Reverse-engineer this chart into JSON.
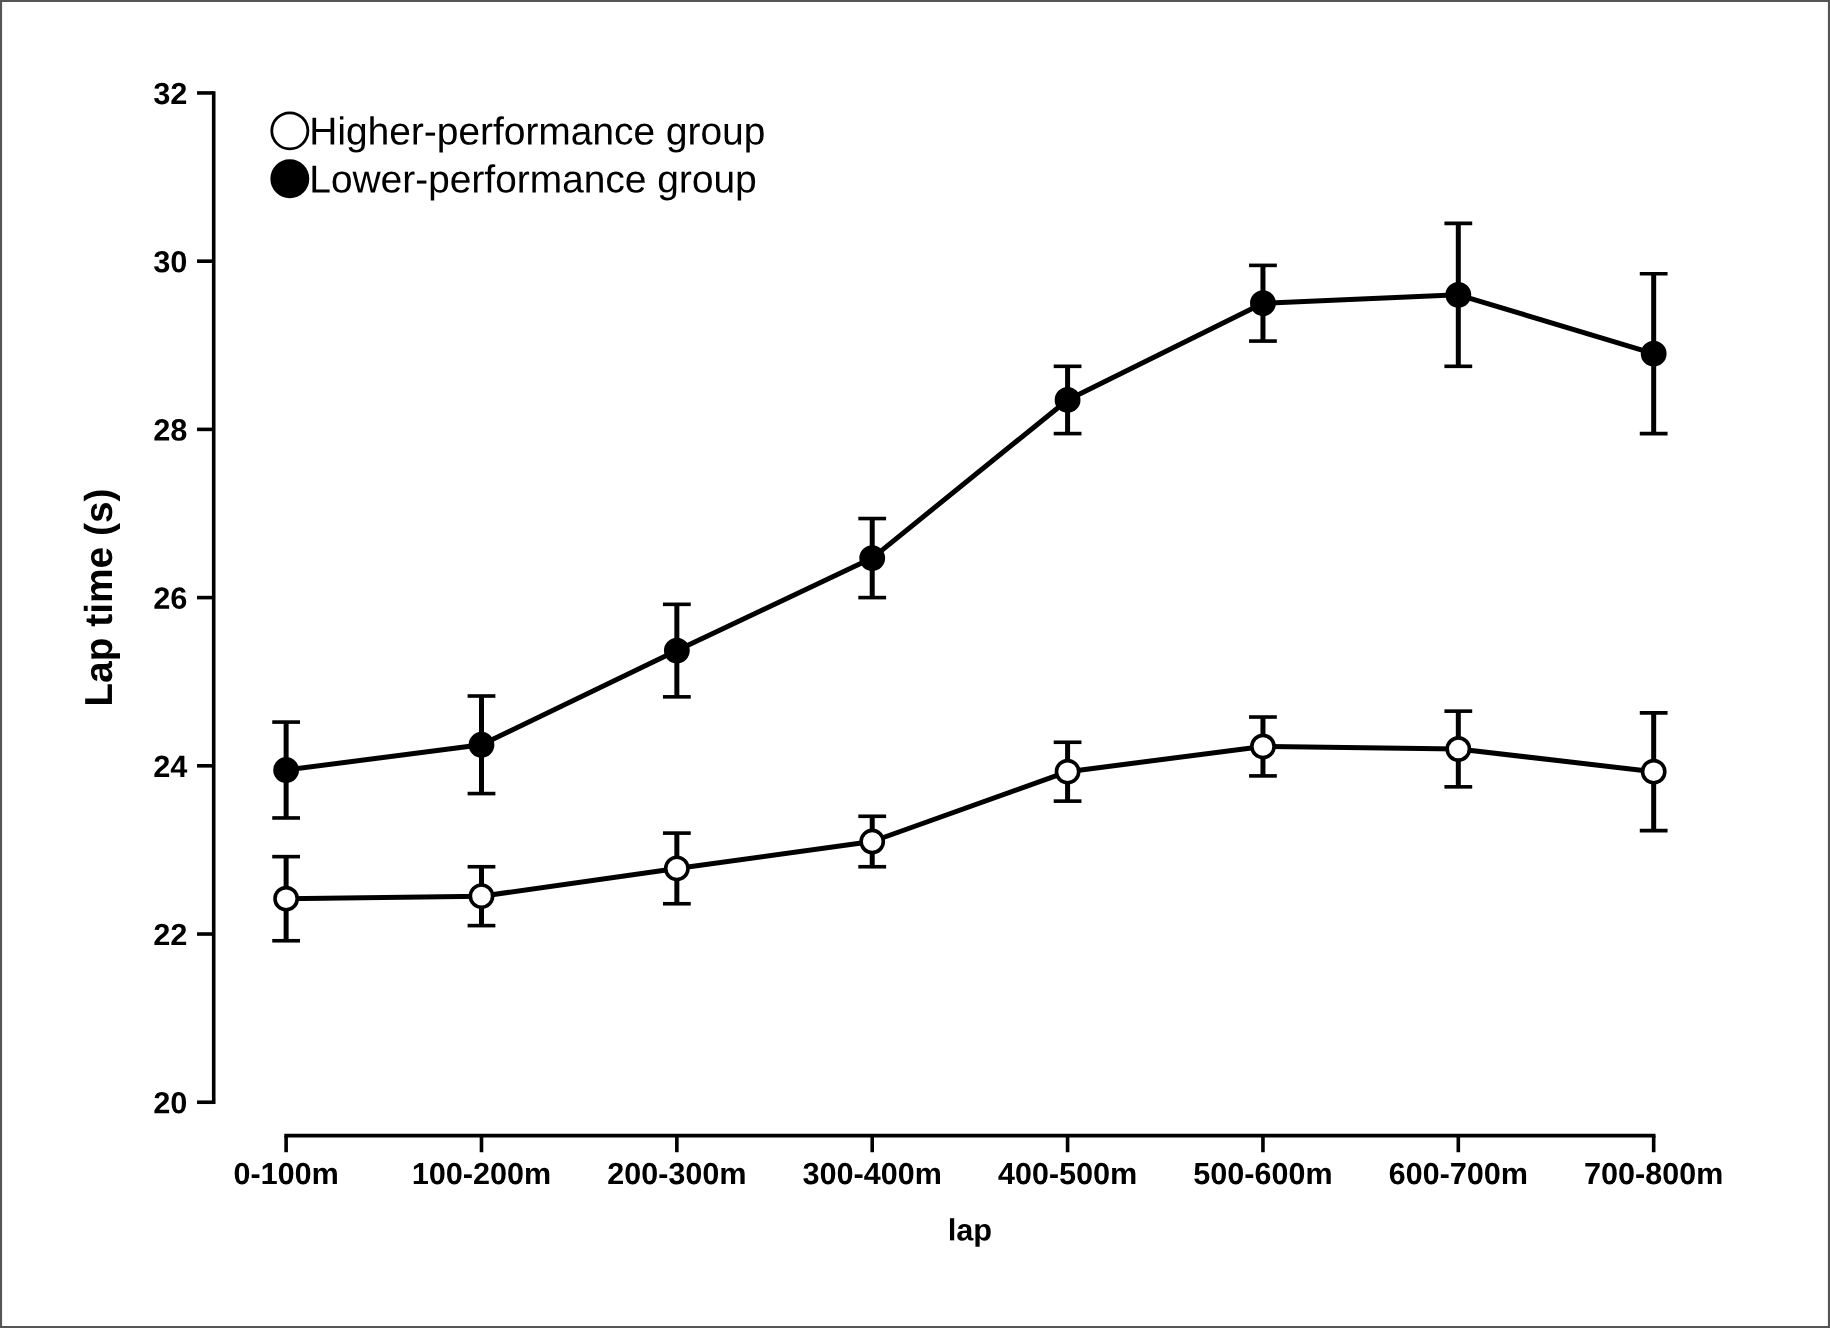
{
  "chart_data": {
    "type": "line",
    "xlabel": "lap",
    "ylabel": "Lap time (s)",
    "categories": [
      "0-100m",
      "100-200m",
      "200-300m",
      "300-400m",
      "400-500m",
      "500-600m",
      "600-700m",
      "700-800m"
    ],
    "series": [
      {
        "name": "Higher-performance group",
        "color": "#ffffff",
        "values": [
          22.42,
          22.45,
          22.78,
          23.1,
          23.93,
          24.23,
          24.2,
          23.93
        ],
        "errors": [
          0.5,
          0.35,
          0.42,
          0.3,
          0.35,
          0.35,
          0.45,
          0.7
        ]
      },
      {
        "name": "Lower-performance group",
        "color": "#000000",
        "values": [
          23.95,
          24.25,
          25.37,
          26.47,
          28.35,
          29.5,
          29.6,
          28.9
        ],
        "errors": [
          0.57,
          0.58,
          0.55,
          0.47,
          0.4,
          0.45,
          0.85,
          0.95
        ]
      }
    ],
    "ylim": [
      20,
      32
    ],
    "yticks": [
      20,
      22,
      24,
      26,
      28,
      30,
      32
    ],
    "grid": false,
    "legend": "top left",
    "marker": "circle",
    "line_style": "solid"
  }
}
